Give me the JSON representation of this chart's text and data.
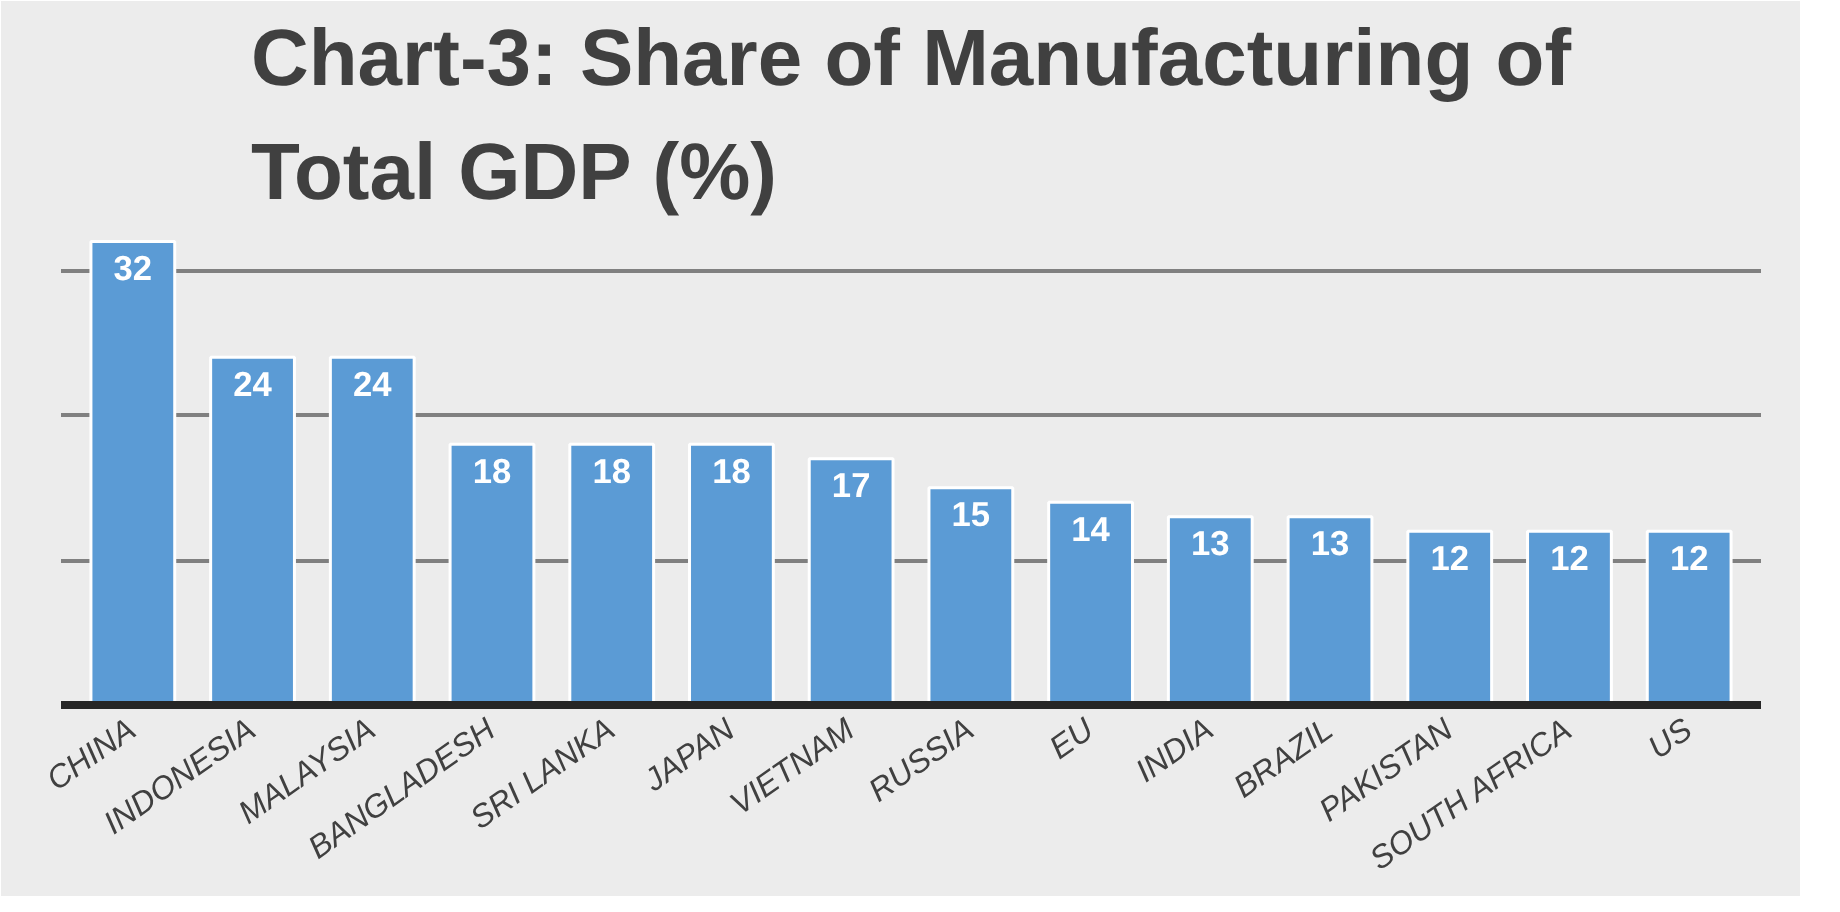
{
  "chart_data": {
    "type": "bar",
    "title": "Chart-3: Share of Manufacturing of\nTotal GDP (%)",
    "categories": [
      "CHINA",
      "INDONESIA",
      "MALAYSIA",
      "BANGLADESH",
      "SRI LANKA",
      "JAPAN",
      "VIETNAM",
      "RUSSIA",
      "EU",
      "INDIA",
      "BRAZIL",
      "PAKISTAN",
      "SOUTH AFRICA",
      "US"
    ],
    "values": [
      32,
      24,
      24,
      18,
      18,
      18,
      17,
      15,
      14,
      13,
      13,
      12,
      12,
      12
    ],
    "color": "#5b9bd5",
    "data_labels": true,
    "grid": "y",
    "tick_labels": "x",
    "ylim": [
      0,
      33
    ],
    "yticks": [
      {
        "value": 0,
        "label": null
      },
      {
        "value": 10,
        "label": null
      },
      {
        "value": 20,
        "label": null
      },
      {
        "value": 30,
        "label": null
      }
    ]
  }
}
